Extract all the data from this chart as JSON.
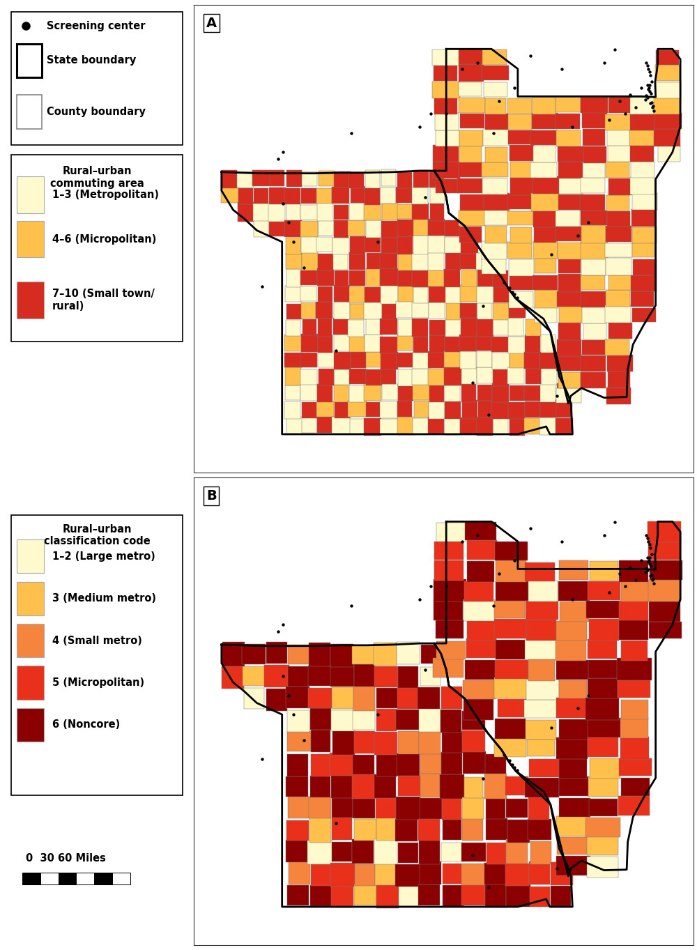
{
  "figure_bg": "#ffffff",
  "panel_a_label": "A",
  "panel_b_label": "B",
  "legend1_title": "Rural–urban\ncommuting area",
  "legend1_items": [
    {
      "label": "1–3 (Metropolitan)",
      "color": "#FFFACD"
    },
    {
      "label": "4–6 (Micropolitan)",
      "color": "#FFC04C"
    },
    {
      "label": "7–10 (Small town/\nrural)",
      "color": "#D62B1F"
    }
  ],
  "legend2_title": "Rural–urban\nclassification code",
  "legend2_items": [
    {
      "label": "1–2 (Large metro)",
      "color": "#FFFACD"
    },
    {
      "label": "3 (Medium metro)",
      "color": "#FFC04C"
    },
    {
      "label": "4 (Small metro)",
      "color": "#F5843C"
    },
    {
      "label": "5 (Micropolitan)",
      "color": "#E8301A"
    },
    {
      "label": "6 (Noncore)",
      "color": "#8B0000"
    }
  ],
  "ruca_colors": [
    "#FFFACD",
    "#FFC04C",
    "#D62B1F"
  ],
  "nchs_colors": [
    "#FFFACD",
    "#FFC04C",
    "#F5843C",
    "#E8301A",
    "#8B0000"
  ],
  "county_border_color": "#777777",
  "state_border_color": "#000000",
  "map_bg": "#ffffff",
  "lon_min": -96.3,
  "lon_max": -86.8,
  "lat_min": 35.9,
  "lat_max": 43.2,
  "screening_lons": [
    -87.63,
    -87.65,
    -87.68,
    -87.7,
    -87.72,
    -87.62,
    -87.58,
    -87.55,
    -87.6,
    -87.64,
    -87.66,
    -87.61,
    -87.67,
    -87.59,
    -87.57,
    -87.62,
    -87.64,
    -87.66,
    -87.68,
    -87.7,
    -88.0,
    -88.3,
    -88.8,
    -89.0,
    -89.3,
    -89.5,
    -90.2,
    -90.15,
    -90.2,
    -90.25,
    -90.3,
    -90.4,
    -91.5,
    -92.0,
    -93.3,
    -94.6,
    -94.7,
    -88.5,
    -89.9,
    -90.5,
    -90.6,
    -90.9,
    -91.2,
    -94.2,
    -92.8,
    -91.9,
    -93.6,
    -90.8,
    -95.0,
    -89.1,
    -89.4,
    -90.7,
    -91.0,
    -91.8,
    -88.1,
    -88.4,
    -88.2,
    -87.8,
    -87.9,
    -94.5,
    -94.4,
    -94.6
  ],
  "screening_lats": [
    41.85,
    41.9,
    41.95,
    41.78,
    41.72,
    41.66,
    41.6,
    41.55,
    42.0,
    41.95,
    41.88,
    41.82,
    41.75,
    41.68,
    41.62,
    42.1,
    42.15,
    42.2,
    42.25,
    42.3,
    41.8,
    42.5,
    39.8,
    39.6,
    42.2,
    39.3,
    41.9,
    38.63,
    38.68,
    38.72,
    38.78,
    38.87,
    41.5,
    41.3,
    41.2,
    40.9,
    40.8,
    42.3,
    42.4,
    41.7,
    41.2,
    42.3,
    42.2,
    39.1,
    39.5,
    40.2,
    37.8,
    38.5,
    38.8,
    41.3,
    37.1,
    36.8,
    37.3,
    41.5,
    41.5,
    41.4,
    41.7,
    41.9,
    41.6,
    39.8,
    39.5,
    40.1
  ]
}
